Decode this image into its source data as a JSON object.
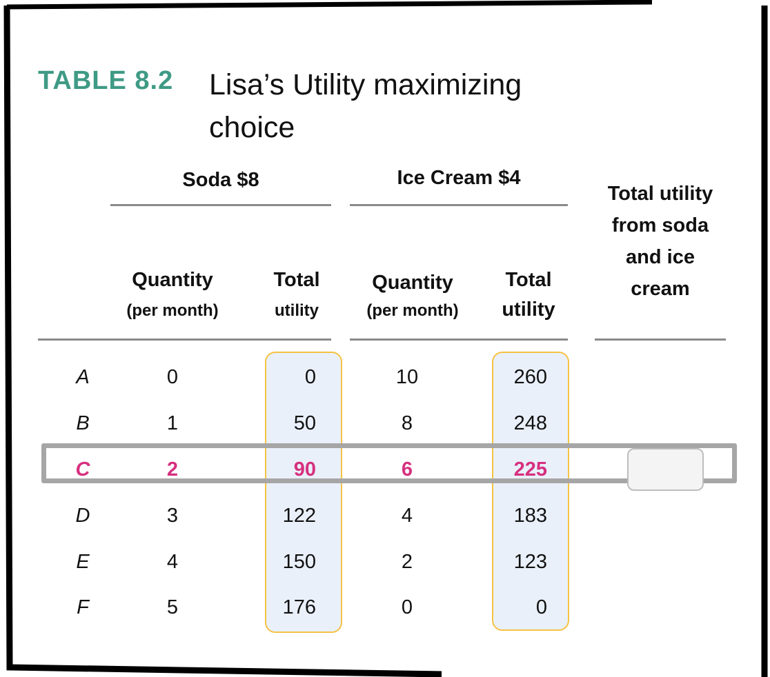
{
  "title": {
    "number": "TABLE 8.2",
    "text": "Lisa’s Utility maximizing choice"
  },
  "groups": {
    "soda": "Soda $8",
    "ice_cream": "Ice Cream $4",
    "total": "Total utility from soda and ice cream"
  },
  "columns": {
    "soda_quantity": {
      "main": "Quantity",
      "sub": "(per month)"
    },
    "soda_utility": {
      "main": "Total",
      "sub": "utility"
    },
    "ice_quantity": {
      "main": "Quantity",
      "sub": "(per month)"
    },
    "ice_utility": {
      "main": "Total",
      "sub": "utility"
    }
  },
  "rows": [
    {
      "label": "A",
      "soda_qty": "0",
      "soda_util": "0",
      "ice_qty": "10",
      "ice_util": "260"
    },
    {
      "label": "B",
      "soda_qty": "1",
      "soda_util": "50",
      "ice_qty": "8",
      "ice_util": "248"
    },
    {
      "label": "C",
      "soda_qty": "2",
      "soda_util": "90",
      "ice_qty": "6",
      "ice_util": "225"
    },
    {
      "label": "D",
      "soda_qty": "3",
      "soda_util": "122",
      "ice_qty": "4",
      "ice_util": "183"
    },
    {
      "label": "E",
      "soda_qty": "4",
      "soda_util": "150",
      "ice_qty": "2",
      "ice_util": "123"
    },
    {
      "label": "F",
      "soda_qty": "5",
      "soda_util": "176",
      "ice_qty": "0",
      "ice_util": "0"
    }
  ],
  "selected_row": "C",
  "answer_value": "",
  "colors": {
    "title_accent": "#3f9a85",
    "selected": "#d6307f",
    "highlight_fill": "#eaf0fa",
    "highlight_border": "#f5c242",
    "selection_box": "#a6a6a6"
  }
}
